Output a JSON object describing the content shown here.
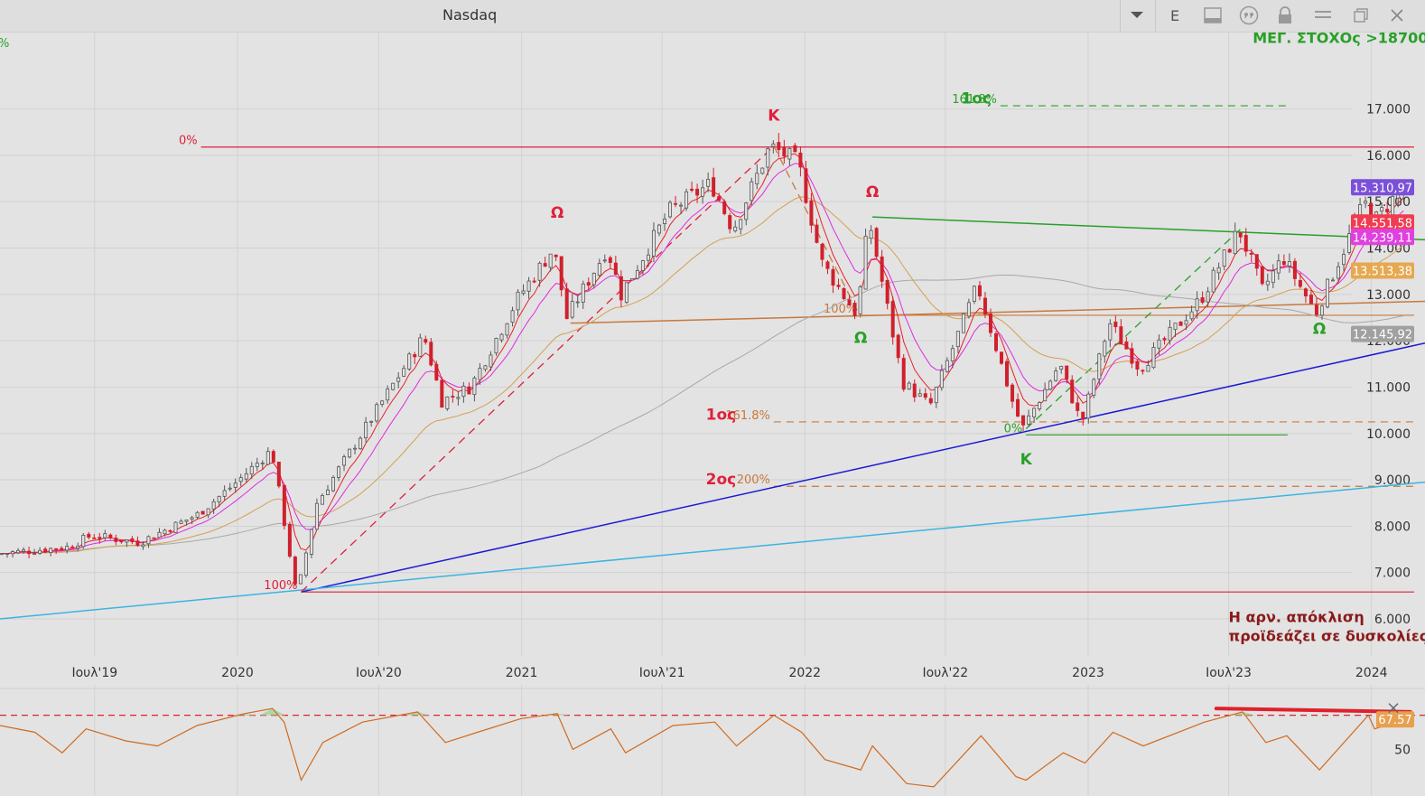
{
  "window": {
    "title": "Nasdaq",
    "left_edge_label": "%"
  },
  "toolbar": {
    "icons": [
      "chevron-down-icon",
      "e-icon",
      "panel-icon",
      "quote-icon",
      "lock-icon",
      "menu-icon",
      "restore-icon",
      "close-icon"
    ],
    "e_label": "E"
  },
  "colors": {
    "background": "#e3e3e3",
    "up_candle": "#555555",
    "down_candle": "#d0202c",
    "ma_red": "#e8202c",
    "ma_magenta": "#e02ae0",
    "ma_tan": "#d4a050",
    "ma_gray": "#a8a8a8",
    "trend_blue": "#1a1ad6",
    "trend_cyan": "#3cb4e0",
    "fib_red": "#e0203c",
    "fib_orange": "#c8783c",
    "fib_green": "#28a028",
    "rsi_line": "#d06a1e"
  },
  "chart_data": {
    "type": "candlestick",
    "title": "Nasdaq",
    "timeframe": "weekly",
    "x_ticks": [
      "Ιουλ'19",
      "2020",
      "Ιουλ'20",
      "2021",
      "Ιουλ'21",
      "2022",
      "Ιουλ'22",
      "2023",
      "Ιουλ'23",
      "2024"
    ],
    "y_ticks": [
      "6.000",
      "7.000",
      "8.000",
      "9.000",
      "10.000",
      "11.000",
      "12.000",
      "13.000",
      "14.000",
      "15.000",
      "16.000",
      "17.000"
    ],
    "ylim": [
      5200,
      18650
    ],
    "xlim": [
      "2019-03-01",
      "2024-03-10"
    ],
    "price_path": [
      {
        "date": "2019-03-01",
        "price": 7400
      },
      {
        "date": "2019-06-01",
        "price": 7550
      },
      {
        "date": "2019-07-01",
        "price": 7800
      },
      {
        "date": "2019-09-01",
        "price": 7650
      },
      {
        "date": "2019-11-15",
        "price": 8250
      },
      {
        "date": "2020-01-01",
        "price": 8900
      },
      {
        "date": "2020-02-19",
        "price": 9650
      },
      {
        "date": "2020-03-20",
        "price": 6700
      },
      {
        "date": "2020-03-23",
        "price": 6580
      },
      {
        "date": "2020-04-17",
        "price": 8500
      },
      {
        "date": "2020-06-10",
        "price": 9900
      },
      {
        "date": "2020-09-02",
        "price": 12100
      },
      {
        "date": "2020-09-25",
        "price": 10700
      },
      {
        "date": "2020-11-01",
        "price": 11000
      },
      {
        "date": "2020-12-31",
        "price": 12900
      },
      {
        "date": "2021-02-16",
        "price": 14000
      },
      {
        "date": "2021-03-05",
        "price": 12500
      },
      {
        "date": "2021-04-26",
        "price": 14000
      },
      {
        "date": "2021-05-14",
        "price": 13000
      },
      {
        "date": "2021-07-15",
        "price": 14800
      },
      {
        "date": "2021-09-07",
        "price": 15400
      },
      {
        "date": "2021-10-05",
        "price": 14400
      },
      {
        "date": "2021-11-22",
        "price": 16200
      },
      {
        "date": "2021-12-28",
        "price": 15850
      },
      {
        "date": "2022-01-27",
        "price": 13700
      },
      {
        "date": "2022-03-14",
        "price": 12550
      },
      {
        "date": "2022-03-29",
        "price": 14650
      },
      {
        "date": "2022-05-12",
        "price": 11100
      },
      {
        "date": "2022-06-16",
        "price": 10600
      },
      {
        "date": "2022-08-16",
        "price": 13200
      },
      {
        "date": "2022-09-30",
        "price": 10700
      },
      {
        "date": "2022-10-13",
        "price": 10100
      },
      {
        "date": "2022-11-30",
        "price": 11500
      },
      {
        "date": "2022-12-28",
        "price": 10200
      },
      {
        "date": "2023-02-02",
        "price": 12400
      },
      {
        "date": "2023-03-13",
        "price": 11400
      },
      {
        "date": "2023-05-31",
        "price": 12900
      },
      {
        "date": "2023-07-19",
        "price": 14400
      },
      {
        "date": "2023-08-18",
        "price": 13100
      },
      {
        "date": "2023-09-14",
        "price": 13800
      },
      {
        "date": "2023-10-26",
        "price": 12600
      },
      {
        "date": "2023-12-28",
        "price": 15000
      },
      {
        "date": "2024-01-05",
        "price": 14500
      },
      {
        "date": "2024-02-15",
        "price": 15311
      }
    ],
    "moving_averages": [
      {
        "color_key": "ma_red",
        "value": 14551.58,
        "label": "14.551,58"
      },
      {
        "color_key": "ma_magenta",
        "value": 14239.11,
        "label": "14.239,11"
      },
      {
        "color_key": "ma_tan",
        "value": 13513.38,
        "label": "13.513,38"
      },
      {
        "color_key": "ma_gray",
        "value": 12145.92,
        "label": "12.145,92"
      }
    ],
    "last_price": {
      "value": 15310.97,
      "label": "15.310,97",
      "color": "#7a50d8"
    },
    "badge_colors": {
      "ma_red": "#f03c50",
      "ma_magenta": "#e040e0",
      "ma_tan": "#e6a850",
      "ma_gray": "#a0a0a0"
    },
    "trendlines": [
      {
        "color_key": "trend_blue",
        "from": {
          "date": "2020-03-23",
          "price": 6580
        },
        "to": {
          "date": "2024-03-10",
          "price": 11950
        },
        "style": "solid"
      },
      {
        "color_key": "trend_cyan",
        "from": {
          "date": "2019-03-01",
          "price": 6000
        },
        "to": {
          "date": "2024-03-10",
          "price": 8950
        },
        "style": "solid"
      },
      {
        "color_key": "fib_red",
        "from": {
          "date": "2020-03-23",
          "price": 6580
        },
        "to": {
          "date": "2021-11-22",
          "price": 16200
        },
        "style": "dashed"
      },
      {
        "color_key": "fib_orange",
        "from": {
          "date": "2021-11-22",
          "price": 16200
        },
        "to": {
          "date": "2022-03-14",
          "price": 12500
        },
        "style": "dashed"
      },
      {
        "color_key": "fib_green",
        "from": {
          "date": "2022-10-13",
          "price": 10100
        },
        "to": {
          "date": "2023-07-19",
          "price": 14450
        },
        "style": "dashed"
      },
      {
        "color_key": "fib_orange",
        "from": {
          "date": "2021-03-05",
          "price": 12380
        },
        "to": {
          "date": "2024-03-10",
          "price": 12850
        },
        "style": "solid"
      },
      {
        "color_key": "fib_green",
        "from": {
          "date": "2022-03-29",
          "price": 14670
        },
        "to": {
          "date": "2024-03-10",
          "price": 14180
        },
        "style": "solid"
      }
    ],
    "levels": [
      {
        "color_key": "fib_red",
        "price": 16180,
        "from": "2019-11-15",
        "to": "2024-02-25",
        "style": "solid",
        "label": "0%"
      },
      {
        "color_key": "fib_red",
        "price": 6580,
        "from": "2020-03-23",
        "to": "2024-02-25",
        "style": "solid",
        "label": "100%"
      },
      {
        "color_key": "fib_orange",
        "price": 10250,
        "from": "2021-11-22",
        "to": "2024-02-25",
        "style": "dashed",
        "label": "161.8%"
      },
      {
        "color_key": "fib_orange",
        "price": 8860,
        "from": "2021-11-22",
        "to": "2024-02-25",
        "style": "dashed",
        "label": "200%"
      },
      {
        "color_key": "fib_orange",
        "price": 12550,
        "from": "2022-03-14",
        "to": "2024-02-25",
        "style": "solid",
        "label": "100%"
      },
      {
        "color_key": "fib_green",
        "price": 17070,
        "from": "2022-09-10",
        "to": "2023-09-15",
        "style": "dashed",
        "label": "161.8%"
      },
      {
        "color_key": "fib_green",
        "price": 9970,
        "from": "2022-10-13",
        "to": "2023-09-15",
        "style": "solid",
        "label": "0%"
      }
    ],
    "annotations": [
      {
        "text": "Ω",
        "date": "2021-02-16",
        "price": 14650,
        "color": "#e0203c"
      },
      {
        "text": "Κ",
        "date": "2021-11-22",
        "price": 16750,
        "color": "#e0203c"
      },
      {
        "text": "Ω",
        "date": "2022-03-29",
        "price": 15100,
        "color": "#e0203c"
      },
      {
        "text": "Ω",
        "date": "2022-03-14",
        "price": 11950,
        "color": "#28a028"
      },
      {
        "text": "Κ",
        "date": "2022-10-13",
        "price": 9330,
        "color": "#28a028"
      },
      {
        "text": "Ω",
        "date": "2023-10-26",
        "price": 12150,
        "color": "#28a028"
      },
      {
        "text": "1ος",
        "date": "2021-09-15",
        "price": 10300,
        "color": "#e0203c"
      },
      {
        "text": "2ος",
        "date": "2021-09-15",
        "price": 8900,
        "color": "#e0203c"
      },
      {
        "text": "1ος",
        "date": "2022-08-10",
        "price": 17120,
        "color": "#28a028"
      },
      {
        "text": "ΜΕΓ. ΣΤΟΧΟς >18700",
        "date": "2023-08-01",
        "price": 18430,
        "color": "#28a028"
      },
      {
        "text": "Η αρν. απόκλιση",
        "date": "2023-07-01",
        "price": 5930,
        "color": "#8a1a1a"
      },
      {
        "text": "προϊδεάζει σε δυσκολίες",
        "date": "2023-07-01",
        "price": 5520,
        "color": "#8a1a1a"
      }
    ],
    "rsi": {
      "current_value": 67.57,
      "current_label": "67.57",
      "tick_label": "50",
      "level": 70,
      "series": [
        {
          "date": "2019-03-01",
          "value": 64
        },
        {
          "date": "2019-04-15",
          "value": 60
        },
        {
          "date": "2019-05-20",
          "value": 48
        },
        {
          "date": "2019-06-20",
          "value": 62
        },
        {
          "date": "2019-08-10",
          "value": 55
        },
        {
          "date": "2019-09-20",
          "value": 52
        },
        {
          "date": "2019-11-10",
          "value": 64
        },
        {
          "date": "2020-01-10",
          "value": 71
        },
        {
          "date": "2020-02-15",
          "value": 74
        },
        {
          "date": "2020-03-01",
          "value": 66
        },
        {
          "date": "2020-03-23",
          "value": 32
        },
        {
          "date": "2020-04-20",
          "value": 54
        },
        {
          "date": "2020-06-10",
          "value": 66
        },
        {
          "date": "2020-08-20",
          "value": 72
        },
        {
          "date": "2020-09-25",
          "value": 54
        },
        {
          "date": "2020-11-05",
          "value": 60
        },
        {
          "date": "2020-12-31",
          "value": 68
        },
        {
          "date": "2021-02-16",
          "value": 71
        },
        {
          "date": "2021-03-08",
          "value": 50
        },
        {
          "date": "2021-04-26",
          "value": 62
        },
        {
          "date": "2021-05-15",
          "value": 48
        },
        {
          "date": "2021-07-15",
          "value": 64
        },
        {
          "date": "2021-09-07",
          "value": 66
        },
        {
          "date": "2021-10-05",
          "value": 52
        },
        {
          "date": "2021-11-22",
          "value": 70
        },
        {
          "date": "2021-12-28",
          "value": 60
        },
        {
          "date": "2022-01-27",
          "value": 44
        },
        {
          "date": "2022-03-14",
          "value": 38
        },
        {
          "date": "2022-03-29",
          "value": 52
        },
        {
          "date": "2022-05-12",
          "value": 30
        },
        {
          "date": "2022-06-16",
          "value": 28
        },
        {
          "date": "2022-08-16",
          "value": 58
        },
        {
          "date": "2022-09-30",
          "value": 34
        },
        {
          "date": "2022-10-13",
          "value": 32
        },
        {
          "date": "2022-11-30",
          "value": 48
        },
        {
          "date": "2022-12-28",
          "value": 42
        },
        {
          "date": "2023-02-02",
          "value": 60
        },
        {
          "date": "2023-03-13",
          "value": 52
        },
        {
          "date": "2023-05-31",
          "value": 66
        },
        {
          "date": "2023-07-19",
          "value": 72
        },
        {
          "date": "2023-08-18",
          "value": 54
        },
        {
          "date": "2023-09-14",
          "value": 58
        },
        {
          "date": "2023-10-26",
          "value": 38
        },
        {
          "date": "2023-12-28",
          "value": 70
        },
        {
          "date": "2024-01-05",
          "value": 62
        },
        {
          "date": "2024-02-15",
          "value": 67.57
        }
      ],
      "divergence_line": {
        "from": {
          "date": "2023-06-15",
          "value": 74
        },
        "to": {
          "date": "2024-02-20",
          "value": 72
        },
        "color": "#e0202c"
      }
    }
  }
}
